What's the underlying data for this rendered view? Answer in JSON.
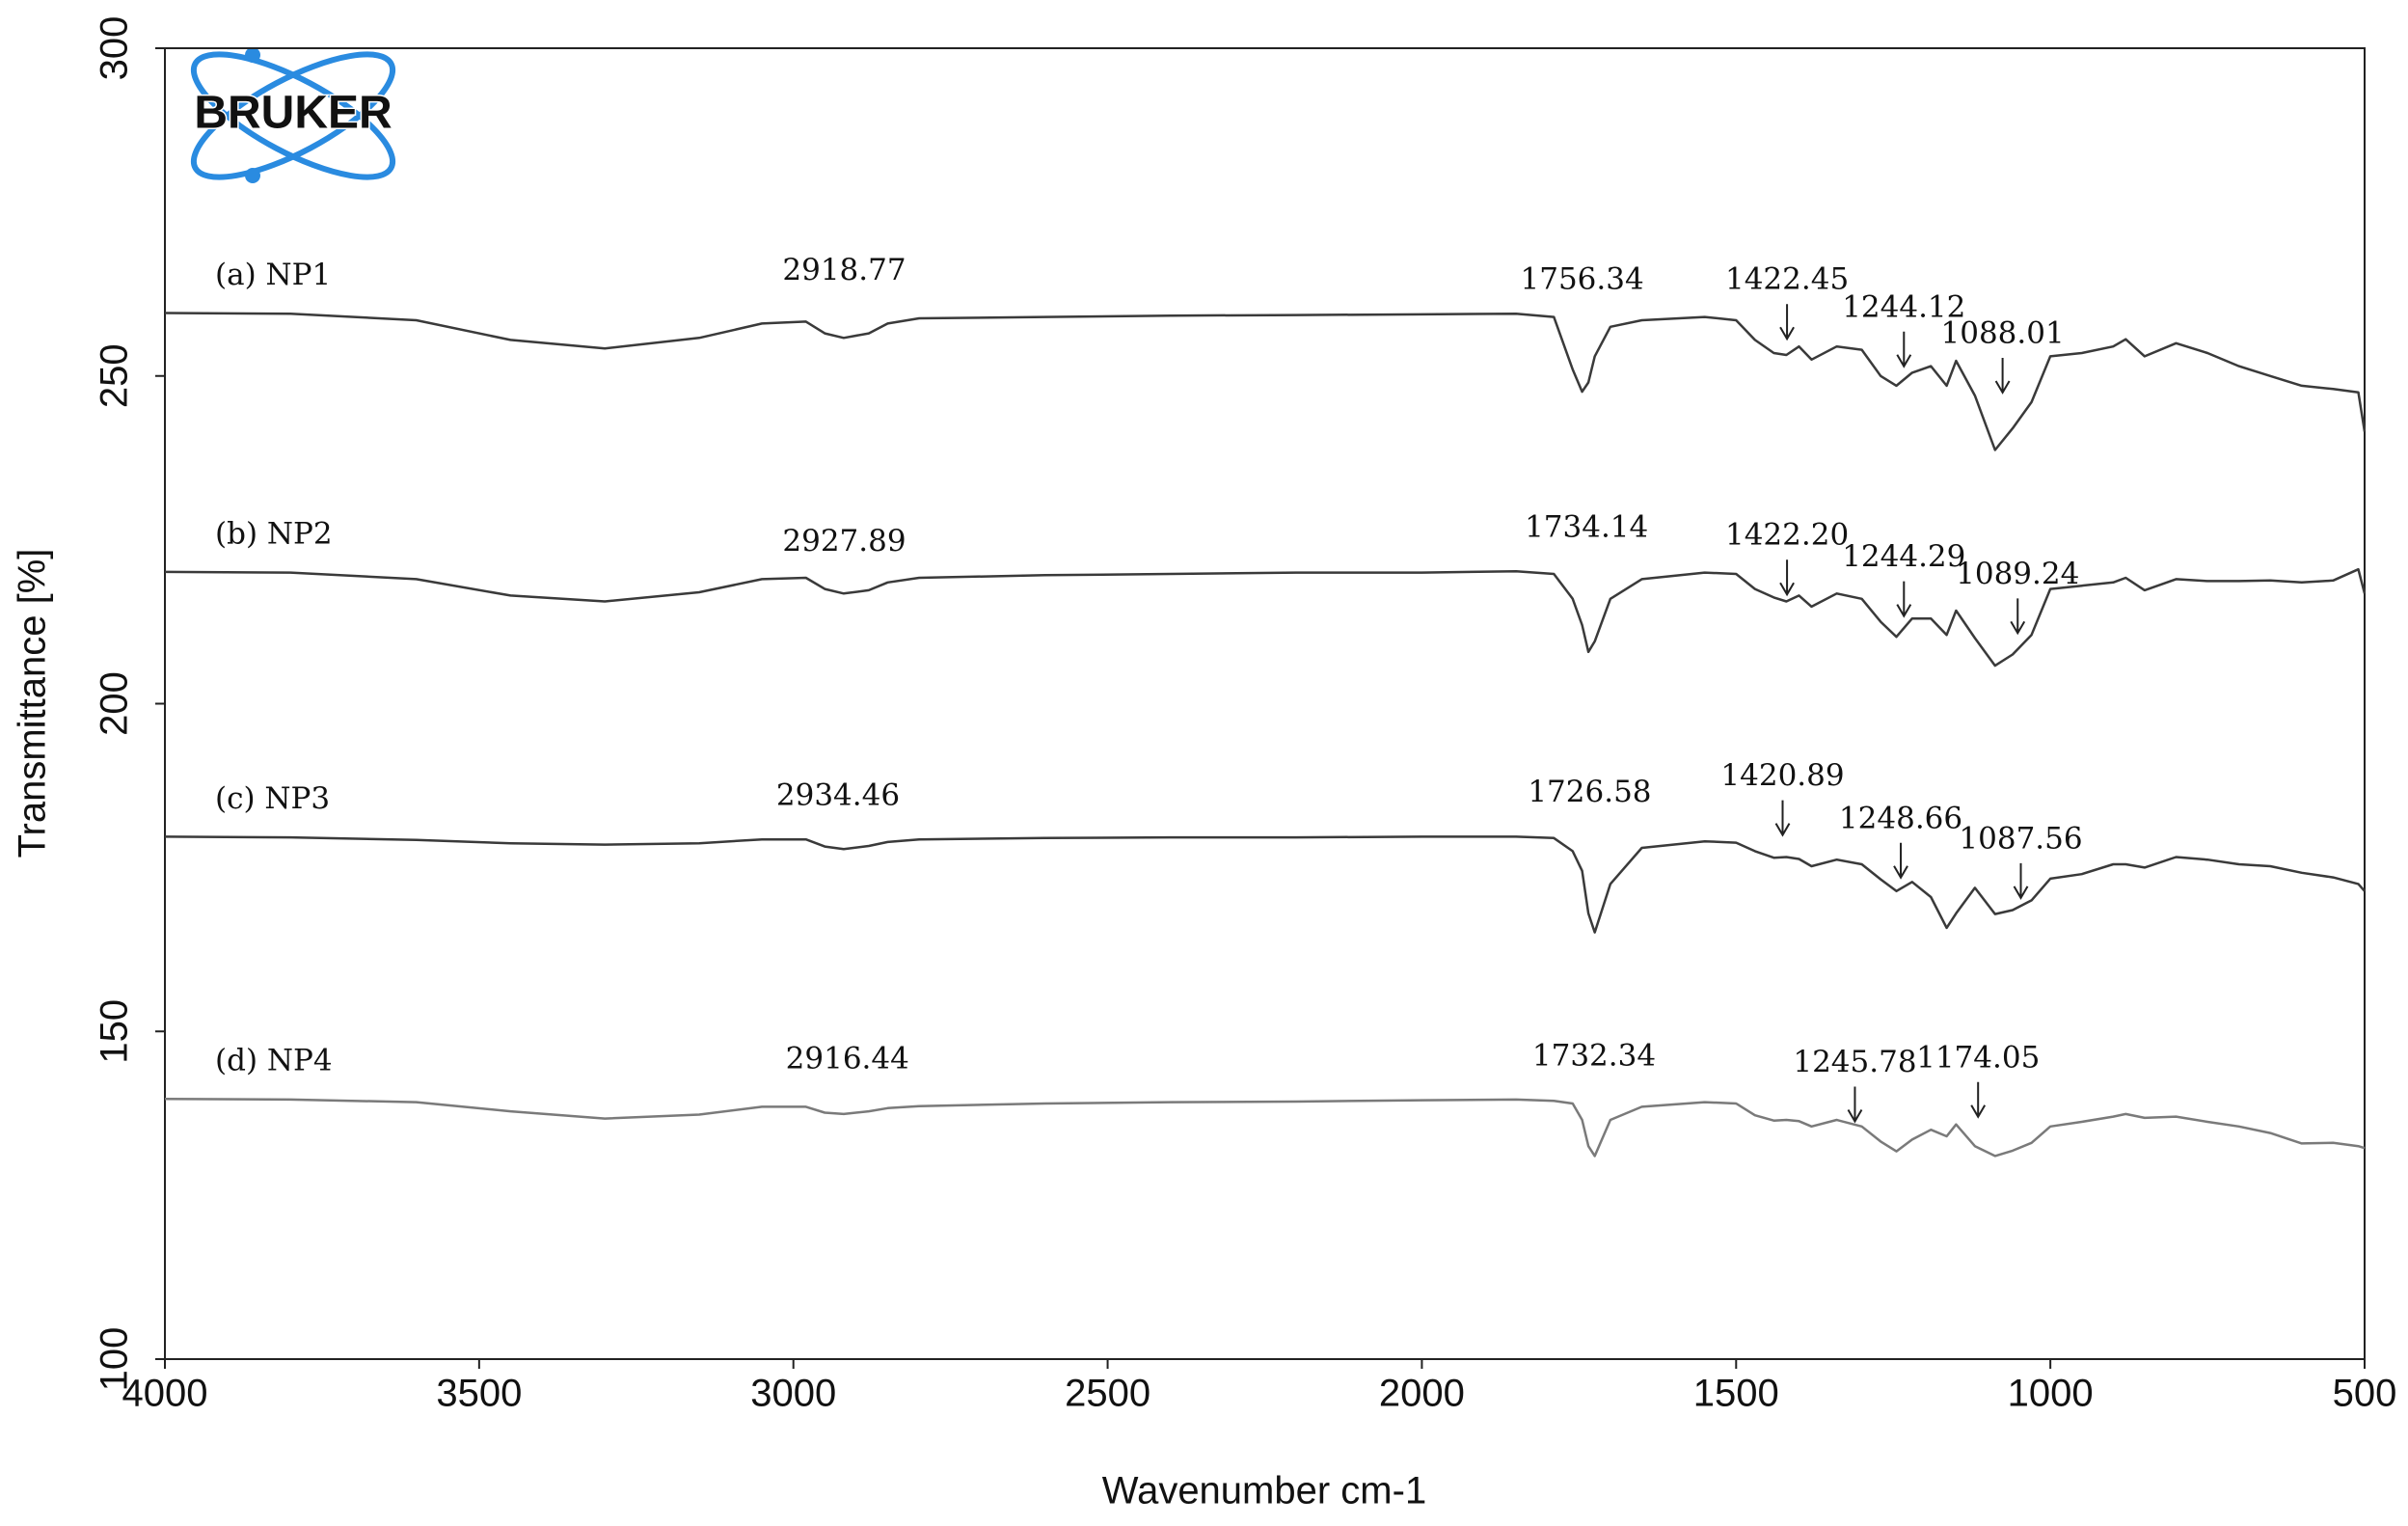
{
  "chart_data": {
    "type": "line",
    "logo": "BRUKER",
    "xlabel": "Wavenumber cm-1",
    "ylabel": "Transmittance [%]",
    "xlim": [
      4000,
      500
    ],
    "xticks": [
      4000,
      3500,
      3000,
      2500,
      2000,
      1500,
      1000,
      500
    ],
    "ylim": [
      100,
      300
    ],
    "yticks": [
      100,
      150,
      200,
      250,
      300
    ],
    "x": [
      4000,
      3800,
      3600,
      3450,
      3300,
      3150,
      3050,
      2980,
      2950,
      2920,
      2880,
      2850,
      2800,
      2600,
      2400,
      2200,
      2000,
      1850,
      1790,
      1760,
      1745,
      1735,
      1725,
      1700,
      1650,
      1550,
      1500,
      1470,
      1440,
      1420,
      1400,
      1380,
      1340,
      1300,
      1270,
      1245,
      1220,
      1190,
      1165,
      1150,
      1120,
      1088,
      1060,
      1030,
      1000,
      950,
      900,
      880,
      850,
      800,
      750,
      700,
      650,
      600,
      550,
      510,
      500
    ],
    "series": [
      {
        "name": "(a) NP1",
        "color": "#3a3a3a",
        "values": [
          259.6,
          259.5,
          258.5,
          255.5,
          254.2,
          255.8,
          258,
          258.3,
          256.5,
          255.8,
          256.5,
          258,
          258.8,
          259,
          259.2,
          259.3,
          259.4,
          259.5,
          259,
          251,
          247.6,
          249,
          253,
          257.5,
          258.5,
          259,
          258.5,
          255.5,
          253.5,
          253.2,
          254.5,
          252.5,
          254.5,
          254,
          250,
          248.5,
          250.5,
          251.5,
          248.5,
          252.3,
          247,
          238.7,
          242,
          246,
          253,
          253.5,
          254.5,
          255.6,
          253,
          255,
          253.5,
          251.5,
          250,
          248.5,
          248,
          247.5,
          241.5
        ]
      },
      {
        "name": "(b) NP2",
        "color": "#3a3a3a",
        "values": [
          220.1,
          220,
          219,
          216.5,
          215.6,
          217,
          219,
          219.2,
          217.5,
          216.8,
          217.3,
          218.5,
          219.2,
          219.6,
          219.8,
          220,
          220,
          220.2,
          219.8,
          216,
          212,
          207.9,
          209.5,
          216,
          219,
          220,
          219.8,
          217.5,
          216.2,
          215.6,
          216.5,
          214.8,
          216.8,
          216,
          212.5,
          210.2,
          213,
          213,
          210.5,
          214.2,
          210,
          205.8,
          207.5,
          210.5,
          217.5,
          218,
          218.5,
          219.2,
          217.3,
          219,
          218.7,
          218.7,
          218.8,
          218.5,
          218.8,
          220.5,
          216.8
        ]
      },
      {
        "name": "(c) NP3",
        "color": "#3a3a3a",
        "values": [
          179.7,
          179.6,
          179.2,
          178.7,
          178.5,
          178.7,
          179.3,
          179.3,
          178.2,
          177.8,
          178.3,
          178.9,
          179.3,
          179.5,
          179.6,
          179.6,
          179.7,
          179.7,
          179.5,
          177.5,
          174.5,
          168,
          165.1,
          172.5,
          178,
          179,
          178.8,
          177.5,
          176.5,
          176.6,
          176.3,
          175.2,
          176.2,
          175.5,
          173.2,
          171.4,
          172.8,
          170.5,
          165.8,
          168,
          171.9,
          167.9,
          168.5,
          170,
          173.3,
          174,
          175.5,
          175.5,
          175,
          176.6,
          176.2,
          175.5,
          175.2,
          174.2,
          173.5,
          172.5,
          171.4
        ]
      },
      {
        "name": "(d) NP4",
        "color": "#7a7a7a",
        "values": [
          139.7,
          139.6,
          139.2,
          137.8,
          136.7,
          137.3,
          138.5,
          138.5,
          137.6,
          137.4,
          137.8,
          138.3,
          138.6,
          139,
          139.2,
          139.3,
          139.5,
          139.6,
          139.4,
          139,
          136.5,
          132.5,
          131,
          136.5,
          138.5,
          139.2,
          139,
          137.2,
          136.4,
          136.5,
          136.3,
          135.5,
          136.5,
          135.5,
          133.2,
          131.7,
          133.5,
          135,
          134,
          135.8,
          132.5,
          131,
          131.8,
          133,
          135.5,
          136.2,
          137,
          137.4,
          136.8,
          137,
          136.2,
          135.5,
          134.5,
          132.9,
          133,
          132.5,
          132.2
        ]
      }
    ],
    "annotations": [
      {
        "text": "2918.77",
        "x": 2919,
        "y": 265.9,
        "arrow": false
      },
      {
        "text": "1756.34",
        "x": 1745,
        "y": 264.5,
        "arrow": false
      },
      {
        "text": "1422.45",
        "x": 1419,
        "y": 264.5,
        "arrow": true
      },
      {
        "text": "1244.12",
        "x": 1233,
        "y": 260.3,
        "arrow": true
      },
      {
        "text": "1088.01",
        "x": 1076,
        "y": 256.3,
        "arrow": true
      },
      {
        "text": "2927.89",
        "x": 2919,
        "y": 224.6,
        "arrow": false
      },
      {
        "text": "1734.14",
        "x": 1738,
        "y": 226.7,
        "arrow": false
      },
      {
        "text": "1422.20",
        "x": 1419,
        "y": 225.5,
        "arrow": true
      },
      {
        "text": "1244.29",
        "x": 1233,
        "y": 222.2,
        "arrow": true
      },
      {
        "text": "1089.24",
        "x": 1052,
        "y": 219.6,
        "arrow": true
      },
      {
        "text": "2934.46",
        "x": 2929,
        "y": 185.8,
        "arrow": false
      },
      {
        "text": "1726.58",
        "x": 1733,
        "y": 186.3,
        "arrow": false
      },
      {
        "text": "1420.89",
        "x": 1426,
        "y": 188.8,
        "arrow": true
      },
      {
        "text": "1248.66",
        "x": 1238,
        "y": 182.3,
        "arrow": true
      },
      {
        "text": "1087.56",
        "x": 1047,
        "y": 179.2,
        "arrow": true
      },
      {
        "text": "2916.44",
        "x": 2914,
        "y": 145.6,
        "arrow": false
      },
      {
        "text": "1732.34",
        "x": 1726,
        "y": 146.1,
        "arrow": false
      },
      {
        "text": "1245.78",
        "x": 1311,
        "y": 145.1,
        "arrow": true
      },
      {
        "text": "1174.05",
        "x": 1115,
        "y": 145.8,
        "arrow": true
      }
    ]
  }
}
